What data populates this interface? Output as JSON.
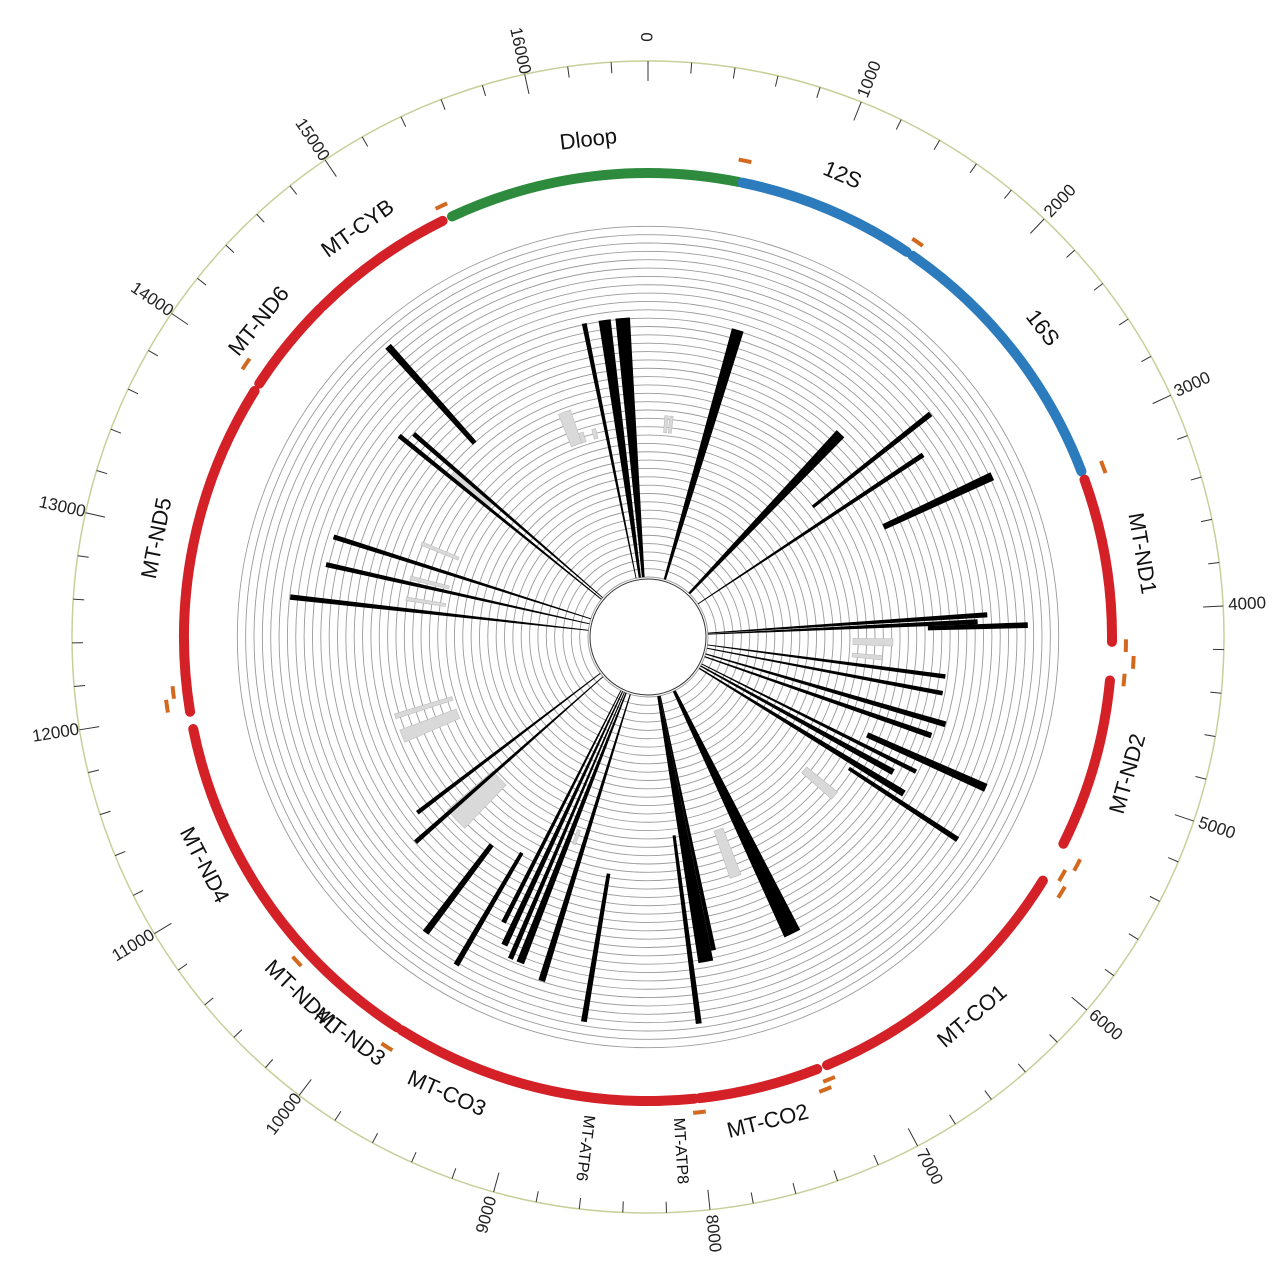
{
  "genome": {
    "length": 16569,
    "tick_labels": [
      {
        "pos": 0,
        "text": "0"
      },
      {
        "pos": 1000,
        "text": "1000"
      },
      {
        "pos": 2000,
        "text": "2000"
      },
      {
        "pos": 3000,
        "text": "3000"
      },
      {
        "pos": 4000,
        "text": "4000"
      },
      {
        "pos": 5000,
        "text": "5000"
      },
      {
        "pos": 6000,
        "text": "6000"
      },
      {
        "pos": 7000,
        "text": "7000"
      },
      {
        "pos": 8000,
        "text": "8000"
      },
      {
        "pos": 9000,
        "text": "9000"
      },
      {
        "pos": 10000,
        "text": "10000"
      },
      {
        "pos": 11000,
        "text": "11000"
      },
      {
        "pos": 12000,
        "text": "12000"
      },
      {
        "pos": 13000,
        "text": "13000"
      },
      {
        "pos": 14000,
        "text": "14000"
      },
      {
        "pos": 15000,
        "text": "15000"
      },
      {
        "pos": 16000,
        "text": "16000"
      }
    ]
  },
  "colors": {
    "dloop": "#2e8b3e",
    "rrna": "#2b7bbd",
    "coding": "#d42027",
    "marker": "#d2691e",
    "bar": "#000000",
    "light_bar": "#d9d9d9",
    "ring": "#9a9a9a",
    "outer_circle": "#c8cf9a"
  },
  "genes": [
    {
      "name": "Dloop",
      "start": -1150,
      "end": 520,
      "color": "dloop"
    },
    {
      "name": "12S",
      "start": 540,
      "end": 1560,
      "color": "rrna"
    },
    {
      "name": "16S",
      "start": 1600,
      "end": 3180,
      "color": "rrna"
    },
    {
      "name": "MT-ND1",
      "start": 3230,
      "end": 4170,
      "color": "coding"
    },
    {
      "name": "MT-ND2",
      "start": 4390,
      "end": 5360,
      "color": "coding"
    },
    {
      "name": "MT-CO1",
      "start": 5600,
      "end": 7240,
      "color": "coding"
    },
    {
      "name": "MT-CO2",
      "start": 7300,
      "end": 7990,
      "color": "coding"
    },
    {
      "name": "MT-ATP8",
      "start": 8020,
      "end": 8220,
      "color": "coding"
    },
    {
      "name": "MT-ATP6",
      "start": 8220,
      "end": 9000,
      "color": "coding"
    },
    {
      "name": "MT-CO3",
      "start": 9000,
      "end": 9760,
      "color": "coding"
    },
    {
      "name": "MT-ND3",
      "start": 9790,
      "end": 10160,
      "color": "coding"
    },
    {
      "name": "MT-ND4L",
      "start": 10160,
      "end": 10450,
      "color": "coding"
    },
    {
      "name": "MT-ND4",
      "start": 10450,
      "end": 11900,
      "color": "coding"
    },
    {
      "name": "MT-ND5",
      "start": 12000,
      "end": 13900,
      "color": "coding"
    },
    {
      "name": "MT-ND6",
      "start": 13950,
      "end": 14500,
      "color": "coding"
    },
    {
      "name": "MT-CYB",
      "start": 14520,
      "end": 15360,
      "color": "coding"
    }
  ],
  "trna_markers": [
    15390,
    530,
    1580,
    3200,
    4190,
    4280,
    4380,
    5430,
    5520,
    5600,
    7260,
    7300,
    8000,
    9780,
    10460,
    12050,
    12120,
    14000
  ],
  "track": {
    "inner_radius": 60,
    "ring_count": 20,
    "ring_spacing": 8.35,
    "light_bars": [
      {
        "start": 15560,
        "end": 15700,
        "r0": 205,
        "r1": 240
      },
      {
        "start": 15700,
        "end": 15760,
        "r0": 205,
        "r1": 215
      },
      {
        "start": 15870,
        "end": 15920,
        "r0": 205,
        "r1": 215
      },
      {
        "start": 200,
        "end": 240,
        "r0": 205,
        "r1": 222
      },
      {
        "start": 260,
        "end": 300,
        "r0": 205,
        "r1": 222
      },
      {
        "start": 4350,
        "end": 4400,
        "r0": 205,
        "r1": 235
      },
      {
        "start": 4160,
        "end": 4240,
        "r0": 205,
        "r1": 245
      },
      {
        "start": 5950,
        "end": 6050,
        "r0": 205,
        "r1": 245
      },
      {
        "start": 7300,
        "end": 7420,
        "r0": 205,
        "r1": 255
      },
      {
        "start": 9170,
        "end": 9210,
        "r0": 205,
        "r1": 220
      },
      {
        "start": 10300,
        "end": 10550,
        "r0": 205,
        "r1": 265
      },
      {
        "start": 11350,
        "end": 11480,
        "r0": 205,
        "r1": 265
      },
      {
        "start": 11600,
        "end": 11650,
        "r0": 205,
        "r1": 265
      },
      {
        "start": 12820,
        "end": 12860,
        "r0": 205,
        "r1": 245
      },
      {
        "start": 13050,
        "end": 13090,
        "r0": 205,
        "r1": 245
      },
      {
        "start": 13440,
        "end": 13480,
        "r0": 205,
        "r1": 245
      },
      {
        "start": 14210,
        "end": 14330,
        "r0": 205,
        "r1": 255
      }
    ],
    "wedges": [
      {
        "start": 16020,
        "end": 16060,
        "r0": 60,
        "r1": 320
      },
      {
        "start": 16300,
        "end": 16420,
        "r0": 60,
        "r1": 320
      },
      {
        "start": 16160,
        "end": 16260,
        "r0": 60,
        "r1": 320
      },
      {
        "start": 700,
        "end": 800,
        "r0": 60,
        "r1": 320
      },
      {
        "start": 1950,
        "end": 2050,
        "r0": 60,
        "r1": 280
      },
      {
        "start": 2580,
        "end": 2620,
        "r0": 60,
        "r1": 330
      },
      {
        "start": 2960,
        "end": 3020,
        "r0": 260,
        "r1": 380
      },
      {
        "start": 2360,
        "end": 2400,
        "r0": 210,
        "r1": 360
      },
      {
        "start": 3950,
        "end": 3990,
        "r0": 60,
        "r1": 340
      },
      {
        "start": 4040,
        "end": 4080,
        "r0": 280,
        "r1": 380
      },
      {
        "start": 4000,
        "end": 4040,
        "r0": 60,
        "r1": 330
      },
      {
        "start": 4470,
        "end": 4510,
        "r0": 60,
        "r1": 300
      },
      {
        "start": 4620,
        "end": 4660,
        "r0": 60,
        "r1": 300
      },
      {
        "start": 4870,
        "end": 4920,
        "r0": 60,
        "r1": 310
      },
      {
        "start": 5000,
        "end": 5050,
        "r0": 60,
        "r1": 300
      },
      {
        "start": 5350,
        "end": 5390,
        "r0": 60,
        "r1": 300
      },
      {
        "start": 5560,
        "end": 5620,
        "r0": 60,
        "r1": 300
      },
      {
        "start": 5440,
        "end": 5500,
        "r0": 60,
        "r1": 280
      },
      {
        "start": 5220,
        "end": 5280,
        "r0": 240,
        "r1": 370
      },
      {
        "start": 5650,
        "end": 5690,
        "r0": 240,
        "r1": 370
      },
      {
        "start": 7020,
        "end": 7160,
        "r0": 60,
        "r1": 330
      },
      {
        "start": 7760,
        "end": 7880,
        "r0": 60,
        "r1": 330
      },
      {
        "start": 7720,
        "end": 7760,
        "r0": 60,
        "r1": 320
      },
      {
        "start": 7920,
        "end": 7960,
        "r0": 200,
        "r1": 390
      },
      {
        "start": 8700,
        "end": 8740,
        "r0": 240,
        "r1": 390
      },
      {
        "start": 9050,
        "end": 9100,
        "r0": 60,
        "r1": 360
      },
      {
        "start": 9240,
        "end": 9300,
        "r0": 60,
        "r1": 350
      },
      {
        "start": 9330,
        "end": 9370,
        "r0": 60,
        "r1": 350
      },
      {
        "start": 9410,
        "end": 9460,
        "r0": 60,
        "r1": 340
      },
      {
        "start": 9500,
        "end": 9540,
        "r0": 60,
        "r1": 320
      },
      {
        "start": 9660,
        "end": 9700,
        "r0": 250,
        "r1": 380
      },
      {
        "start": 9960,
        "end": 10010,
        "r0": 260,
        "r1": 370
      },
      {
        "start": 10500,
        "end": 10540,
        "r0": 60,
        "r1": 310
      },
      {
        "start": 10690,
        "end": 10730,
        "r0": 60,
        "r1": 290
      },
      {
        "start": 12700,
        "end": 12740,
        "r0": 60,
        "r1": 360
      },
      {
        "start": 12990,
        "end": 13030,
        "r0": 60,
        "r1": 330
      },
      {
        "start": 13220,
        "end": 13260,
        "r0": 60,
        "r1": 330
      },
      {
        "start": 14200,
        "end": 14240,
        "r0": 60,
        "r1": 320
      },
      {
        "start": 14290,
        "end": 14330,
        "r0": 60,
        "r1": 310
      },
      {
        "start": 14620,
        "end": 14670,
        "r0": 260,
        "r1": 390
      }
    ]
  }
}
